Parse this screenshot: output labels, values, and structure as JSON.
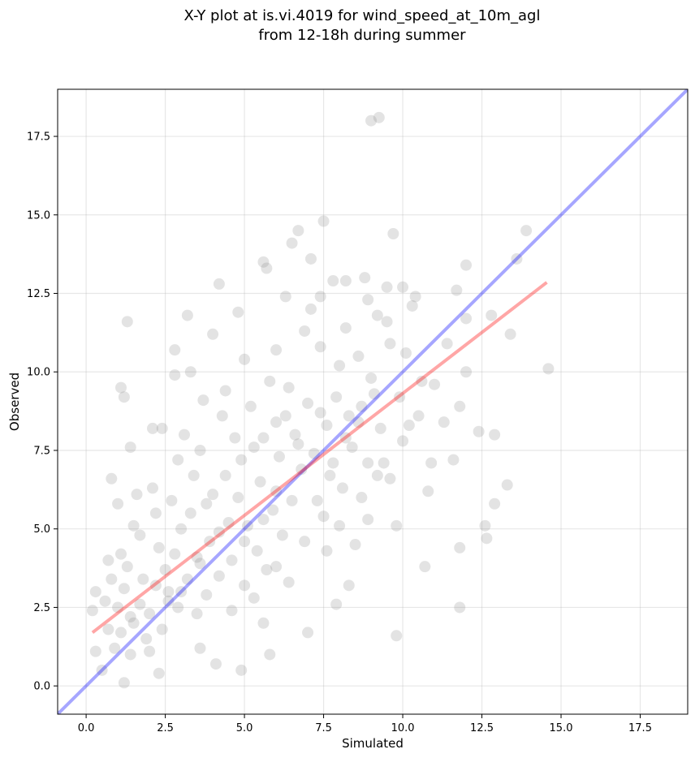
{
  "chart_data": {
    "type": "scatter",
    "title": "X-Y plot at is.vi.4019 for wind_speed_at_10m_agl",
    "subtitle": "from 12-18h during summer",
    "xlabel": "Simulated",
    "ylabel": "Observed",
    "xlim": [
      -0.9,
      19.0
    ],
    "ylim": [
      -0.9,
      19.0
    ],
    "xticks": [
      "0.0",
      "2.5",
      "5.0",
      "7.5",
      "10.0",
      "12.5",
      "15.0",
      "17.5"
    ],
    "yticks": [
      "0.0",
      "2.5",
      "5.0",
      "7.5",
      "10.0",
      "12.5",
      "15.0",
      "17.5"
    ],
    "grid": true,
    "point_color": "#808080",
    "identity_line": {
      "color": "#0000ff",
      "x": [
        -0.9,
        19.0
      ],
      "y": [
        -0.9,
        19.0
      ]
    },
    "fit_line": {
      "color": "#ff0000",
      "x": [
        0.2,
        14.55
      ],
      "y": [
        1.7,
        12.85
      ]
    },
    "series": [
      {
        "values": [
          [
            9.0,
            18.0
          ],
          [
            9.25,
            18.1
          ],
          [
            7.5,
            14.8
          ],
          [
            6.7,
            14.5
          ],
          [
            13.9,
            14.5
          ],
          [
            9.7,
            14.4
          ],
          [
            6.5,
            14.1
          ],
          [
            5.6,
            13.5
          ],
          [
            8.2,
            12.9
          ],
          [
            7.8,
            12.9
          ],
          [
            10.0,
            12.7
          ],
          [
            9.5,
            12.7
          ],
          [
            10.4,
            12.4
          ],
          [
            11.7,
            12.6
          ],
          [
            12.0,
            13.4
          ],
          [
            12.8,
            11.8
          ],
          [
            12.0,
            11.7
          ],
          [
            13.4,
            11.2
          ],
          [
            12.4,
            8.1
          ],
          [
            12.6,
            5.1
          ],
          [
            12.9,
            5.8
          ],
          [
            13.3,
            6.4
          ],
          [
            12.65,
            4.7
          ],
          [
            11.8,
            4.4
          ],
          [
            11.8,
            2.5
          ],
          [
            10.7,
            3.8
          ],
          [
            12.9,
            8.0
          ],
          [
            12.0,
            10.0
          ],
          [
            9.8,
            1.6
          ],
          [
            8.3,
            3.2
          ],
          [
            7.9,
            2.6
          ],
          [
            7.0,
            1.7
          ],
          [
            5.8,
            1.0
          ],
          [
            4.1,
            0.7
          ],
          [
            4.9,
            0.5
          ],
          [
            1.3,
            11.6
          ],
          [
            2.8,
            10.7
          ],
          [
            4.0,
            11.2
          ],
          [
            3.2,
            11.8
          ],
          [
            4.2,
            12.8
          ],
          [
            4.8,
            11.9
          ],
          [
            5.7,
            13.3
          ],
          [
            2.8,
            9.9
          ],
          [
            3.3,
            10.0
          ],
          [
            1.1,
            9.5
          ],
          [
            1.2,
            9.2
          ],
          [
            2.1,
            8.2
          ],
          [
            0.8,
            6.6
          ],
          [
            1.4,
            7.6
          ],
          [
            2.4,
            8.2
          ],
          [
            6.0,
            10.7
          ],
          [
            7.1,
            13.6
          ],
          [
            7.4,
            12.4
          ],
          [
            8.8,
            13.0
          ],
          [
            9.2,
            11.8
          ],
          [
            10.6,
            9.7
          ],
          [
            11.3,
            8.4
          ],
          [
            11.8,
            8.9
          ],
          [
            10.8,
            6.2
          ],
          [
            10.9,
            7.1
          ],
          [
            11.6,
            7.2
          ],
          [
            9.4,
            7.1
          ],
          [
            9.6,
            6.6
          ],
          [
            8.9,
            5.3
          ],
          [
            9.8,
            5.1
          ],
          [
            8.5,
            4.5
          ],
          [
            7.6,
            4.3
          ],
          [
            6.4,
            3.3
          ],
          [
            5.6,
            2.0
          ],
          [
            3.6,
            1.2
          ],
          [
            2.3,
            0.4
          ],
          [
            1.2,
            0.1
          ],
          [
            0.3,
            3.0
          ],
          [
            0.2,
            2.4
          ],
          [
            0.3,
            1.1
          ],
          [
            0.5,
            0.5
          ],
          [
            0.7,
            1.8
          ],
          [
            14.6,
            10.1
          ],
          [
            13.6,
            13.6
          ],
          [
            1.0,
            2.5
          ],
          [
            1.2,
            3.1
          ],
          [
            1.5,
            2.0
          ],
          [
            1.1,
            4.2
          ],
          [
            1.8,
            3.4
          ],
          [
            2.0,
            2.3
          ],
          [
            2.3,
            4.4
          ],
          [
            2.6,
            3.0
          ],
          [
            1.5,
            5.1
          ],
          [
            1.0,
            5.8
          ],
          [
            0.7,
            4.0
          ],
          [
            0.9,
            1.2
          ],
          [
            1.4,
            1.0
          ],
          [
            1.9,
            1.5
          ],
          [
            2.4,
            1.8
          ],
          [
            2.9,
            2.5
          ],
          [
            3.2,
            3.4
          ],
          [
            3.5,
            4.1
          ],
          [
            3.0,
            5.0
          ],
          [
            2.7,
            5.9
          ],
          [
            2.1,
            6.3
          ],
          [
            1.7,
            4.8
          ],
          [
            2.5,
            3.7
          ],
          [
            3.8,
            2.9
          ],
          [
            4.2,
            3.5
          ],
          [
            3.9,
            4.6
          ],
          [
            4.5,
            5.2
          ],
          [
            4.0,
            6.1
          ],
          [
            3.4,
            6.7
          ],
          [
            2.9,
            7.2
          ],
          [
            4.6,
            4.0
          ],
          [
            5.0,
            3.2
          ],
          [
            5.4,
            4.3
          ],
          [
            5.1,
            5.1
          ],
          [
            4.8,
            6.0
          ],
          [
            5.5,
            6.5
          ],
          [
            5.9,
            5.6
          ],
          [
            6.2,
            4.8
          ],
          [
            5.7,
            3.7
          ],
          [
            6.5,
            5.9
          ],
          [
            6.8,
            6.9
          ],
          [
            6.1,
            7.3
          ],
          [
            5.3,
            7.6
          ],
          [
            4.7,
            7.9
          ],
          [
            4.3,
            8.6
          ],
          [
            5.2,
            8.9
          ],
          [
            6.0,
            8.4
          ],
          [
            6.6,
            8.0
          ],
          [
            7.2,
            7.4
          ],
          [
            7.6,
            8.3
          ],
          [
            7.0,
            9.0
          ],
          [
            6.4,
            9.5
          ],
          [
            5.8,
            9.7
          ],
          [
            7.9,
            9.2
          ],
          [
            8.3,
            8.6
          ],
          [
            8.7,
            8.9
          ],
          [
            8.4,
            7.6
          ],
          [
            7.7,
            6.7
          ],
          [
            7.3,
            5.9
          ],
          [
            8.1,
            6.3
          ],
          [
            8.9,
            7.1
          ],
          [
            9.3,
            8.2
          ],
          [
            9.0,
            9.8
          ],
          [
            8.6,
            10.5
          ],
          [
            8.0,
            10.2
          ],
          [
            7.4,
            10.8
          ],
          [
            6.9,
            11.3
          ],
          [
            9.6,
            10.9
          ],
          [
            9.9,
            9.2
          ],
          [
            10.2,
            8.3
          ],
          [
            9.5,
            11.6
          ],
          [
            8.2,
            11.4
          ],
          [
            7.1,
            12.0
          ],
          [
            6.3,
            12.4
          ],
          [
            5.0,
            10.4
          ],
          [
            4.4,
            9.4
          ],
          [
            3.7,
            9.1
          ],
          [
            3.1,
            8.0
          ],
          [
            3.6,
            7.5
          ],
          [
            2.2,
            5.5
          ],
          [
            1.6,
            6.1
          ],
          [
            1.3,
            3.8
          ],
          [
            0.6,
            2.7
          ],
          [
            0.8,
            3.4
          ],
          [
            1.1,
            1.7
          ],
          [
            1.7,
            2.6
          ],
          [
            2.2,
            3.2
          ],
          [
            2.8,
            4.2
          ],
          [
            3.3,
            5.5
          ],
          [
            3.8,
            5.8
          ],
          [
            4.4,
            6.7
          ],
          [
            4.9,
            7.2
          ],
          [
            5.6,
            7.9
          ],
          [
            6.3,
            8.6
          ],
          [
            6.7,
            7.7
          ],
          [
            7.4,
            8.7
          ],
          [
            7.8,
            7.1
          ],
          [
            8.2,
            7.9
          ],
          [
            8.6,
            8.4
          ],
          [
            9.1,
            9.3
          ],
          [
            5.0,
            4.6
          ],
          [
            5.6,
            5.3
          ],
          [
            6.0,
            6.2
          ],
          [
            4.2,
            4.9
          ],
          [
            3.6,
            3.9
          ],
          [
            2.6,
            2.7
          ],
          [
            2.0,
            1.1
          ],
          [
            1.4,
            2.2
          ],
          [
            3.0,
            3.0
          ],
          [
            3.5,
            2.3
          ],
          [
            4.6,
            2.4
          ],
          [
            5.3,
            2.8
          ],
          [
            6.0,
            3.8
          ],
          [
            6.9,
            4.6
          ],
          [
            7.5,
            5.4
          ],
          [
            8.0,
            5.1
          ],
          [
            8.7,
            6.0
          ],
          [
            9.2,
            6.7
          ],
          [
            10.0,
            7.8
          ],
          [
            10.5,
            8.6
          ],
          [
            11.0,
            9.6
          ],
          [
            11.4,
            10.9
          ],
          [
            10.1,
            10.6
          ],
          [
            10.3,
            12.1
          ],
          [
            8.9,
            12.3
          ]
        ]
      }
    ]
  }
}
